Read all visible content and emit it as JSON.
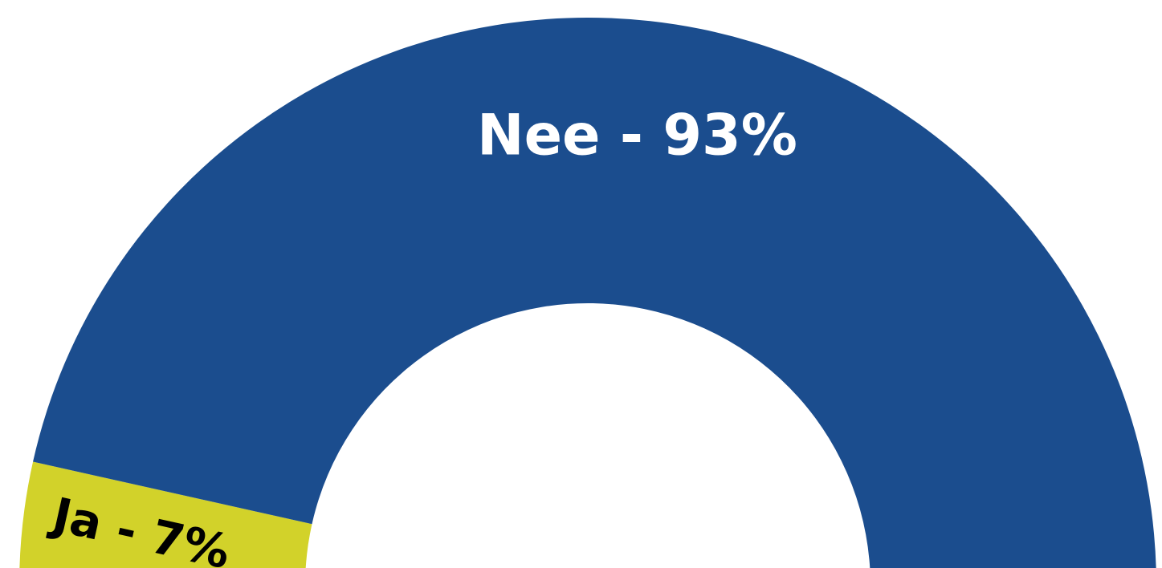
{
  "chart_data": {
    "type": "pie",
    "categories": [
      "Ja",
      "Nee"
    ],
    "values": [
      7,
      93
    ],
    "value_labels": [
      "Ja - 7%",
      "Nee - 93%"
    ],
    "colors": [
      "#d2d22a",
      "#1b4d8e"
    ],
    "label_colors": [
      "#000000",
      "#ffffff"
    ]
  }
}
